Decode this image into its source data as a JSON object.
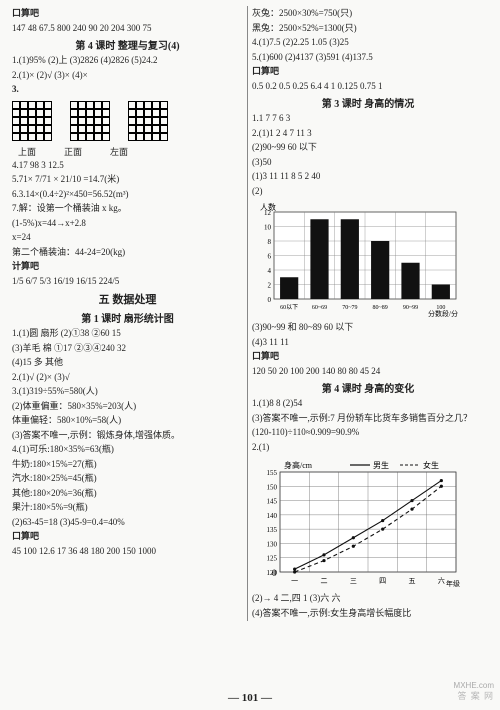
{
  "left": {
    "sec1_title": "口算吧",
    "sec1_nums": "147  48  67.5  800  240  90  20  204  300  75",
    "lesson4_title": "第 4 课时  整理与复习(4)",
    "q1": "1.(1)95%  (2)上  (3)2826  (4)2826  (5)24.2",
    "q2": "2.(1)×  (2)√  (3)×  (4)×",
    "q3_label": "3.",
    "grid_labels": {
      "a": "上面",
      "b": "正面",
      "c": "左面"
    },
    "q4": "4.17  98  3  12.5",
    "q5": "5.71× 7/71 × 21/10 =14.7(米)",
    "q6": "6.3.14×(0.4÷2)²×450=56.52(m³)",
    "q7a": "7.解：设第一个桶装油 x kg。",
    "q7b": "   (1-5%)x=44→x+2.8",
    "q7c": "    x=24",
    "q7d": "   第二个桶装油：44-24=20(kg)",
    "calc_title": "计算吧",
    "fracs": "1/5  6/7  5/3  16/19  16/15  224/5",
    "unit5": "五  数据处理",
    "lesson1_title": "第 1 课时  扇形统计图",
    "l1_1": "1.(1)圆  扇形  (2)①38  ②60  15",
    "l1_2": "   (3)羊毛  棉  ①17  ②③④240  32",
    "l1_3": "   (4)15  多  其他",
    "l1_4": "2.(1)√  (2)×  (3)√",
    "l1_5": "3.(1)319÷55%=580(人)",
    "l1_6": "   (2)体重偏重：580×35%=203(人)",
    "l1_7": "      体重偏轻：580×10%=58(人)",
    "l1_8": "   (3)答案不唯一,示例：锻炼身体,增强体质。",
    "l1_9": "4.(1)可乐:180×35%=63(瓶)",
    "l1_10": "     牛奶:180×15%=27(瓶)",
    "l1_11": "     汽水:180×25%=45(瓶)",
    "l1_12": "     其他:180×20%=36(瓶)",
    "l1_13": "     果汁:180×5%=9(瓶)",
    "l1_14": "   (2)63-45=18  (3)45-9=0.4=40%",
    "calc2_title": "口算吧",
    "calc2": "45  100  12.6  17  36  48  180  200  150  1000"
  },
  "right": {
    "r1a": "灰兔：2500×30%=750(只)",
    "r1b": "黑兔：2500×52%=1300(只)",
    "r2": "4.(1)7.5  (2)2.25  1.05  (3)25",
    "r3": "5.(1)600  (2)4137  (3)591  (4)137.5",
    "calc_title": "口算吧",
    "calc": "0.5  0.2  0.5  0.25  6.4  4  1  0.125  0.75  1",
    "lesson3_title": "第 3 课时  身高的情况",
    "l3_1": "1.1  7  7  6  3",
    "l3_2": "2.(1)1  2  4  7  11  3",
    "l3_3": "   (2)90~99  60 以下",
    "l3_4": "   (3)50",
    "l3_5": "(1)3  11  11  8  5  2  40",
    "l3_6": "(2)",
    "bar_chart": {
      "ylabel": "人数",
      "yticks": [
        0,
        2,
        4,
        6,
        8,
        10,
        12
      ],
      "categories": [
        "60以下",
        "60~69",
        "70~79",
        "80~89",
        "90~99",
        "100"
      ],
      "xlabel": "分数段/分",
      "values": [
        3,
        11,
        11,
        8,
        5,
        2
      ],
      "bar_color": "#111111",
      "grid_color": "#888888",
      "bg": "#ffffff"
    },
    "l3_7": "(3)90~99 和 80~89  60 以下",
    "l3_8": "(4)3  11  11",
    "calc2_title": "口算吧",
    "calc2": "120  50  20  100  200  140  80  80  45  24",
    "lesson4_title": "第 4 课时  身高的变化",
    "l4_1": "1.(1)8  8  (2)54",
    "l4_2": "   (3)答案不唯一,示例:7 月份轿车比货车多销售百分之几？",
    "l4_3": "   (120-110)÷110≈0.909=90.9%",
    "l4_4": "2.(1)",
    "line_chart": {
      "ylabel": "身高/cm",
      "legend": {
        "boy": "男生",
        "girl": "女生"
      },
      "yticks": [
        120,
        125,
        130,
        135,
        140,
        145,
        150,
        155
      ],
      "categories": [
        "一",
        "二",
        "三",
        "四",
        "五",
        "六"
      ],
      "xlabel": "年级",
      "boy": [
        121,
        126,
        132,
        138,
        145,
        152
      ],
      "girl": [
        120,
        124,
        129,
        135,
        142,
        150
      ],
      "boy_style": "solid",
      "girl_style": "dashed",
      "line_color": "#111111",
      "grid_color": "#666666",
      "bg": "#ffffff"
    },
    "l4_5": "(2)→  4  二,四  1  (3)六 六",
    "l4_6": "(4)答案不唯一,示例:女生身高增长幅度比"
  },
  "page_num": "— 101 —",
  "watermark": "MXHE.com",
  "watermark_cn": "答 案 网"
}
